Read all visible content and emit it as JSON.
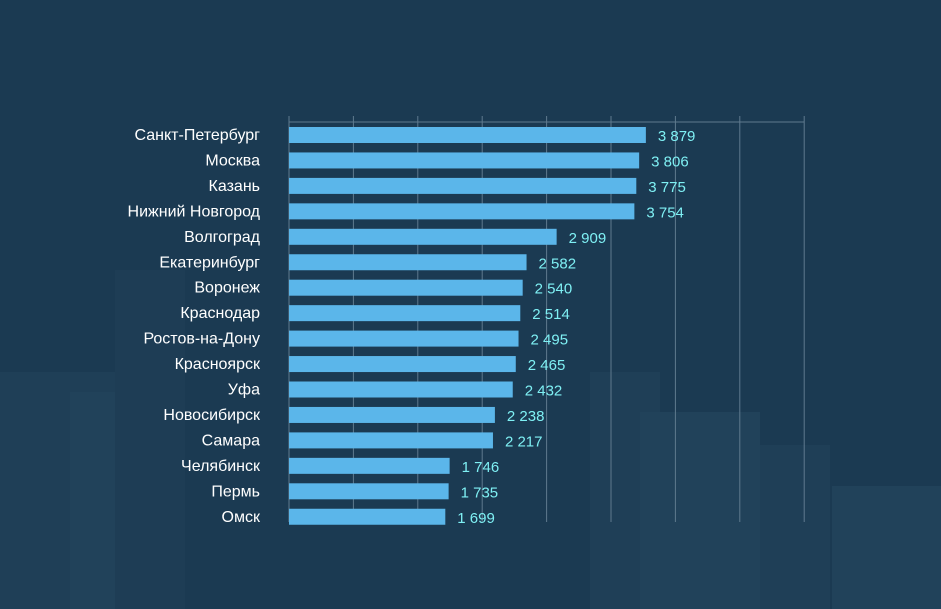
{
  "colors": {
    "background": "#1b3a52",
    "bar": "#5bb6ea",
    "value_label": "#7ff0f4",
    "category_label": "#ffffff",
    "grid": "#5f7a8e"
  },
  "chart_data": {
    "type": "bar",
    "orientation": "horizontal",
    "title": "",
    "xlabel": "",
    "ylabel": "",
    "xlim": [
      0,
      4000
    ],
    "grid": true,
    "categories": [
      "Санкт-Петербург",
      "Москва",
      "Казань",
      "Нижний Новгород",
      "Волгоград",
      "Екатеринбург",
      "Воронеж",
      "Краснодар",
      "Ростов-на-Дону",
      "Красноярск",
      "Уфа",
      "Новосибирск",
      "Самара",
      "Челябинск",
      "Пермь",
      "Омск"
    ],
    "values": [
      3879,
      3806,
      3775,
      3754,
      2909,
      2582,
      2540,
      2514,
      2495,
      2465,
      2432,
      2238,
      2217,
      1746,
      1735,
      1699
    ],
    "value_labels": [
      "3 879",
      "3 806",
      "3 775",
      "3 754",
      "2 909",
      "2 582",
      "2 540",
      "2 514",
      "2 495",
      "2 465",
      "2 432",
      "2 238",
      "2 217",
      "1 746",
      "1 735",
      "1 699"
    ]
  }
}
